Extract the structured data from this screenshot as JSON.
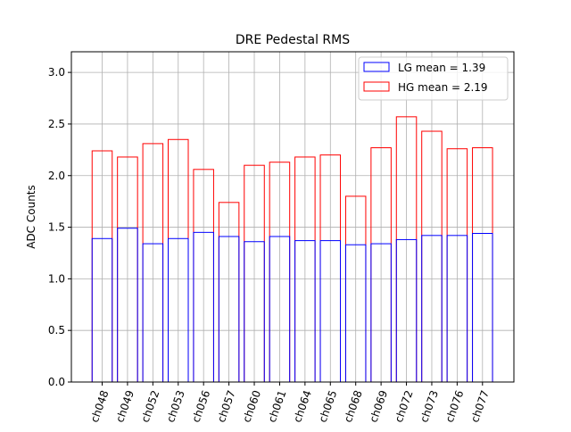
{
  "chart_data": {
    "type": "bar",
    "title": "DRE Pedestal RMS",
    "xlabel": "",
    "ylabel": "ADC Counts",
    "ylim": [
      0,
      3.2
    ],
    "yticks": [
      "0.0",
      "0.5",
      "1.0",
      "1.5",
      "2.0",
      "2.5",
      "3.0"
    ],
    "ytick_values": [
      0.0,
      0.5,
      1.0,
      1.5,
      2.0,
      2.5,
      3.0
    ],
    "grid": true,
    "legend_position": "top-right",
    "categories": [
      "ch048",
      "ch049",
      "ch052",
      "ch053",
      "ch056",
      "ch057",
      "ch060",
      "ch061",
      "ch064",
      "ch065",
      "ch068",
      "ch069",
      "ch072",
      "ch073",
      "ch076",
      "ch077"
    ],
    "series": [
      {
        "name": "LG mean = 1.39",
        "color": "#0000ff",
        "style": "outline",
        "values": [
          1.39,
          1.49,
          1.34,
          1.39,
          1.45,
          1.41,
          1.36,
          1.41,
          1.37,
          1.37,
          1.33,
          1.34,
          1.38,
          1.42,
          1.42,
          1.44
        ]
      },
      {
        "name": "HG mean = 2.19",
        "color": "#ff0000",
        "style": "outline",
        "values": [
          2.24,
          2.18,
          2.31,
          2.35,
          2.06,
          1.74,
          2.1,
          2.13,
          2.18,
          2.2,
          1.8,
          2.27,
          2.57,
          2.43,
          2.26,
          2.27
        ]
      }
    ]
  }
}
